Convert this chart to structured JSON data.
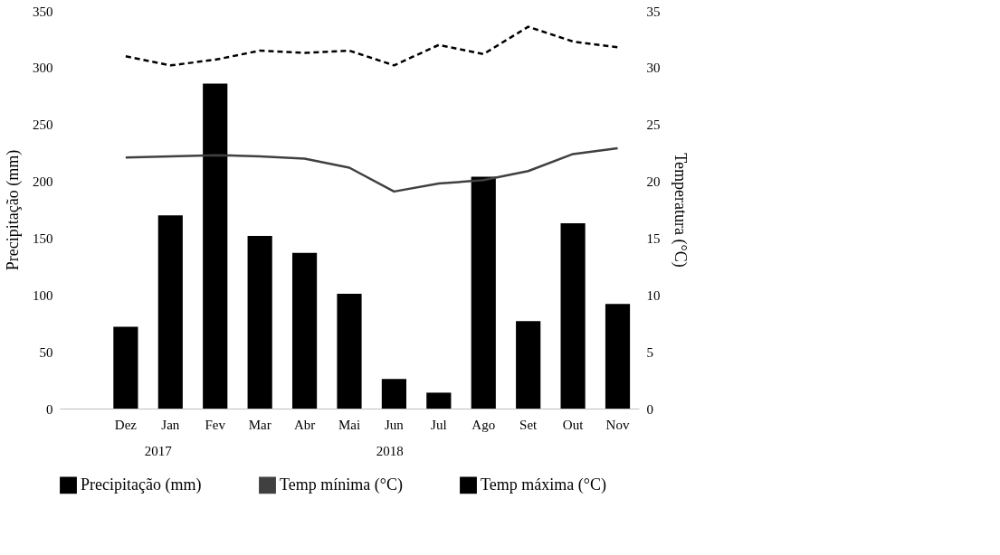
{
  "chart_data": {
    "type": "bar",
    "ylabel": "Precipitação (mm)",
    "y2label": "Temperatura (°C)",
    "categories": [
      null,
      "Dez",
      "Jan",
      "Fev",
      "Mar",
      "Abr",
      "Mai",
      "Jun",
      "Jul",
      "Ago",
      "Set",
      "Out",
      "Nov"
    ],
    "series": [
      {
        "name": "Precipitação (mm)",
        "color": "#000000",
        "values": [
          null,
          72,
          170,
          286,
          152,
          137,
          101,
          26,
          14,
          204,
          77,
          163,
          92
        ]
      },
      {
        "name": "Temp mínima (°C)",
        "type": "line",
        "axis": "y2",
        "line_style": "solid",
        "color": "#404040",
        "values": [
          null,
          22.1,
          22.2,
          22.3,
          22.2,
          22.0,
          21.2,
          19.1,
          19.8,
          20.1,
          20.9,
          22.4,
          22.9
        ]
      },
      {
        "name": "Temp máxima (°C)",
        "type": "line",
        "axis": "y2",
        "line_style": "dashed",
        "color": "#000000",
        "values": [
          null,
          31.0,
          30.2,
          30.7,
          31.5,
          31.3,
          31.5,
          30.2,
          32.0,
          31.2,
          33.6,
          32.3,
          31.8
        ]
      }
    ],
    "ylim": [
      0,
      350
    ],
    "yticks": [
      0,
      50,
      100,
      150,
      200,
      250,
      300,
      350
    ],
    "y2lim": [
      0,
      35
    ],
    "y2ticks": [
      0,
      5,
      10,
      15,
      20,
      25,
      30,
      35
    ],
    "annotations": [
      "2017",
      "2018"
    ],
    "grid": false,
    "legend": "bottom",
    "marker": "none"
  }
}
